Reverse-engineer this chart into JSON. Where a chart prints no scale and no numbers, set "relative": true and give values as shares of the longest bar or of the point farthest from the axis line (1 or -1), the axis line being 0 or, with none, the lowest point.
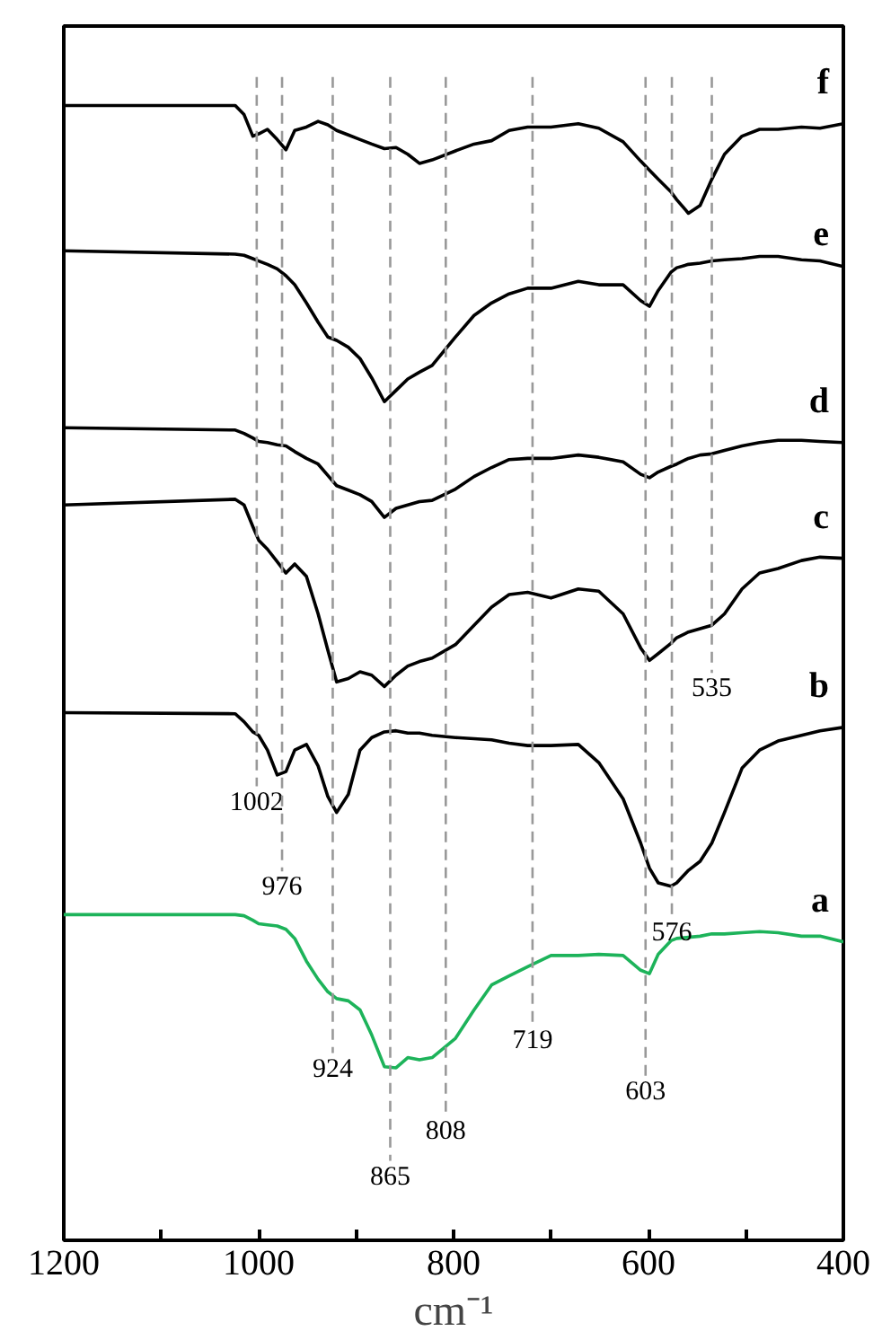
{
  "chart_data": {
    "type": "line",
    "relative": true,
    "xlabel": "cm⁻¹",
    "x": [
      1200,
      1024,
      1015,
      1006,
      1000,
      991,
      981,
      972,
      963,
      951,
      939,
      929,
      920,
      908,
      896,
      884,
      871,
      859,
      847,
      835,
      822,
      798,
      779,
      761,
      743,
      724,
      700,
      672,
      651,
      626,
      608,
      599,
      590,
      577,
      571,
      559,
      547,
      535,
      522,
      504,
      486,
      467,
      443,
      424,
      400
    ],
    "xlim": [
      1200,
      400
    ],
    "xticks": [
      1200,
      {
        "value": 1100,
        "label": null
      },
      1000,
      {
        "value": 900,
        "label": null
      },
      800,
      {
        "value": 700,
        "label": null
      },
      600,
      {
        "value": 500,
        "label": null
      },
      400
    ],
    "series": [
      {
        "name": "f",
        "color": "#000000",
        "values": [
          1.0,
          1.0,
          0.992,
          0.973,
          0.975,
          0.979,
          0.97,
          0.961,
          0.978,
          0.981,
          0.986,
          0.983,
          0.978,
          0.974,
          0.97,
          0.966,
          0.962,
          0.963,
          0.957,
          0.949,
          0.952,
          0.96,
          0.966,
          0.969,
          0.978,
          0.981,
          0.981,
          0.984,
          0.98,
          0.968,
          0.951,
          0.943,
          0.935,
          0.924,
          0.917,
          0.905,
          0.912,
          0.935,
          0.957,
          0.973,
          0.979,
          0.979,
          0.981,
          0.98,
          0.984
        ]
      },
      {
        "name": "e",
        "color": "#000000",
        "values": [
          0.872,
          0.869,
          0.868,
          0.865,
          0.863,
          0.86,
          0.856,
          0.85,
          0.842,
          0.826,
          0.809,
          0.796,
          0.793,
          0.787,
          0.777,
          0.76,
          0.739,
          0.749,
          0.759,
          0.765,
          0.771,
          0.796,
          0.815,
          0.826,
          0.834,
          0.839,
          0.839,
          0.845,
          0.842,
          0.842,
          0.828,
          0.823,
          0.837,
          0.853,
          0.857,
          0.86,
          0.861,
          0.863,
          0.864,
          0.865,
          0.867,
          0.867,
          0.864,
          0.863,
          0.858
        ]
      },
      {
        "name": "d",
        "color": "#000000",
        "values": [
          0.716,
          0.714,
          0.711,
          0.707,
          0.704,
          0.703,
          0.701,
          0.7,
          0.695,
          0.689,
          0.684,
          0.674,
          0.665,
          0.661,
          0.657,
          0.651,
          0.637,
          0.645,
          0.648,
          0.651,
          0.652,
          0.662,
          0.673,
          0.681,
          0.688,
          0.689,
          0.689,
          0.692,
          0.69,
          0.686,
          0.675,
          0.672,
          0.677,
          0.682,
          0.684,
          0.689,
          0.692,
          0.693,
          0.696,
          0.7,
          0.703,
          0.705,
          0.705,
          0.704,
          0.703
        ]
      },
      {
        "name": "c",
        "color": "#000000",
        "values": [
          0.648,
          0.653,
          0.648,
          0.629,
          0.617,
          0.609,
          0.598,
          0.588,
          0.596,
          0.585,
          0.552,
          0.52,
          0.492,
          0.495,
          0.501,
          0.498,
          0.488,
          0.498,
          0.506,
          0.51,
          0.513,
          0.525,
          0.542,
          0.558,
          0.569,
          0.571,
          0.566,
          0.574,
          0.572,
          0.552,
          0.522,
          0.511,
          0.517,
          0.526,
          0.531,
          0.536,
          0.539,
          0.542,
          0.552,
          0.574,
          0.588,
          0.592,
          0.599,
          0.602,
          0.601
        ]
      },
      {
        "name": "b",
        "color": "#000000",
        "values": [
          0.465,
          0.464,
          0.457,
          0.448,
          0.445,
          0.432,
          0.41,
          0.413,
          0.432,
          0.437,
          0.418,
          0.391,
          0.377,
          0.393,
          0.432,
          0.443,
          0.448,
          0.449,
          0.447,
          0.447,
          0.445,
          0.443,
          0.442,
          0.441,
          0.438,
          0.436,
          0.436,
          0.437,
          0.421,
          0.389,
          0.35,
          0.328,
          0.315,
          0.312,
          0.315,
          0.326,
          0.334,
          0.35,
          0.377,
          0.416,
          0.432,
          0.44,
          0.445,
          0.449,
          0.452
        ]
      },
      {
        "name": "a",
        "color": "#1db35a",
        "values": [
          0.287,
          0.287,
          0.286,
          0.282,
          0.279,
          0.278,
          0.277,
          0.274,
          0.266,
          0.246,
          0.23,
          0.219,
          0.213,
          0.211,
          0.203,
          0.181,
          0.153,
          0.152,
          0.161,
          0.159,
          0.161,
          0.178,
          0.203,
          0.225,
          0.233,
          0.241,
          0.251,
          0.251,
          0.252,
          0.251,
          0.238,
          0.235,
          0.252,
          0.264,
          0.266,
          0.267,
          0.268,
          0.27,
          0.27,
          0.271,
          0.272,
          0.271,
          0.268,
          0.268,
          0.263
        ]
      }
    ],
    "ref_lines": [
      {
        "axis": "x",
        "value": 1002,
        "label": "1002",
        "color": "#999999",
        "line_style": "dashed"
      },
      {
        "axis": "x",
        "value": 976,
        "label": "976",
        "color": "#999999",
        "line_style": "dashed"
      },
      {
        "axis": "x",
        "value": 924,
        "label": "924",
        "color": "#999999",
        "line_style": "dashed"
      },
      {
        "axis": "x",
        "value": 865,
        "label": "865",
        "color": "#999999",
        "line_style": "dashed"
      },
      {
        "axis": "x",
        "value": 808,
        "label": "808",
        "color": "#999999",
        "line_style": "dashed"
      },
      {
        "axis": "x",
        "value": 719,
        "label": "719",
        "color": "#999999",
        "line_style": "dashed"
      },
      {
        "axis": "x",
        "value": 603,
        "label": "603",
        "color": "#999999",
        "line_style": "dashed"
      },
      {
        "axis": "x",
        "value": 576,
        "label": "576",
        "color": "#999999",
        "line_style": "dashed"
      },
      {
        "axis": "x",
        "value": 535,
        "label": "535",
        "color": "#999999",
        "line_style": "dashed"
      }
    ],
    "grid": false,
    "legend": false,
    "marker": "none",
    "line_style": "solid"
  }
}
